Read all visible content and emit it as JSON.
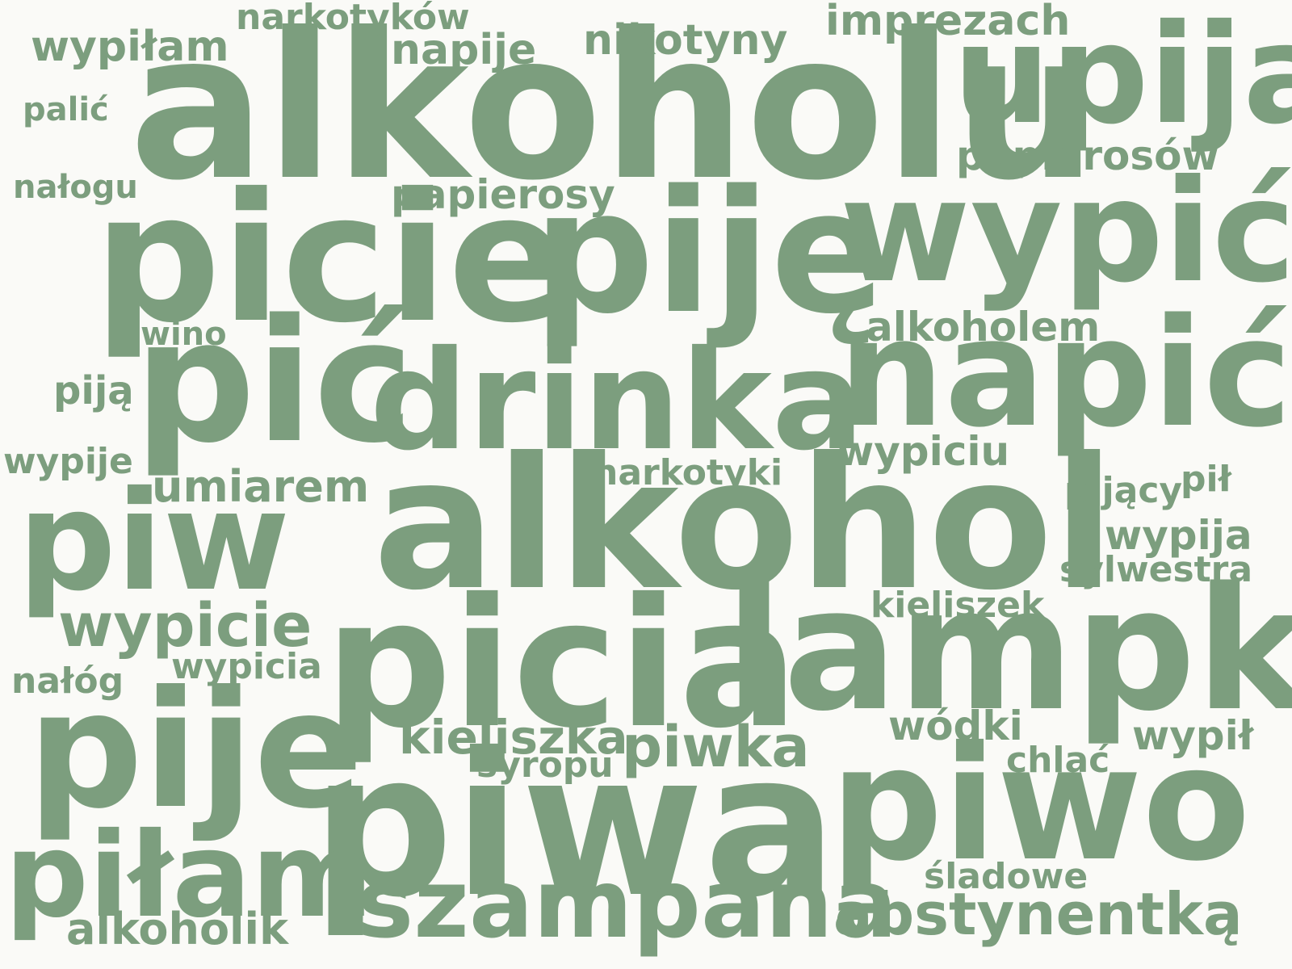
{
  "cloud": {
    "color": "#7c9e7e",
    "background": "#fafaf7",
    "words": [
      "alkoholu",
      "upija",
      "narkotyków",
      "imprezach",
      "nikotyny",
      "napije",
      "wypiłam",
      "palić",
      "papierosów",
      "nałogu",
      "papierosy",
      "picie",
      "piję",
      "wypić",
      "alkoholem",
      "wino",
      "pić",
      "drinka",
      "napić",
      "piją",
      "wypiciu",
      "wypije",
      "narkotyki",
      "umiarem",
      "alkohol",
      "pijący",
      "pił",
      "piw",
      "wypija",
      "sylwestra",
      "kieliszek",
      "wypicie",
      "picia",
      "lampki",
      "wypicia",
      "nałóg",
      "pije",
      "wódki",
      "wypił",
      "kieliszka",
      "piwka",
      "syropu",
      "chlać",
      "piwa",
      "piwo",
      "piłam",
      "śladowe",
      "szampana",
      "abstynentką",
      "alkoholik"
    ]
  }
}
